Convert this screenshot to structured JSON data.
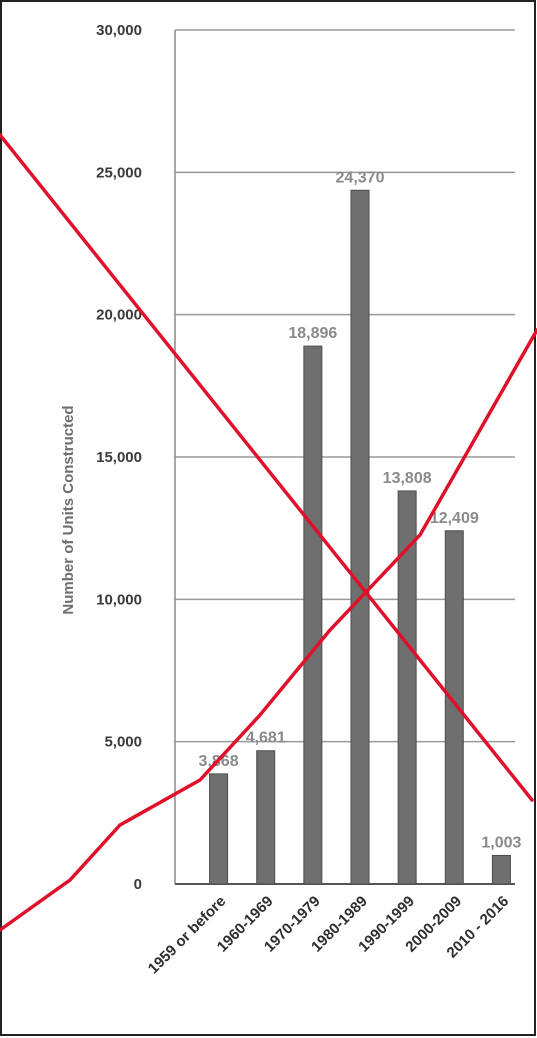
{
  "chart_data": {
    "type": "bar",
    "categories": [
      "1959 or before",
      "1960-1969",
      "1970-1979",
      "1980-1989",
      "1990-1999",
      "2000-2009",
      "2010 - 2016"
    ],
    "values": [
      3868,
      4681,
      18896,
      24370,
      13808,
      12409,
      1003
    ],
    "data_labels": [
      "3,868",
      "4,681",
      "18,896",
      "24,370",
      "13,808",
      "12,409",
      "1,003"
    ],
    "ylabel": "Number of Units Constructed",
    "xlabel": "",
    "title": "",
    "ylim": [
      0,
      30000
    ],
    "yticks": [
      "0",
      "5,000",
      "10,000",
      "15,000",
      "20,000",
      "25,000",
      "30,000"
    ],
    "grid": true,
    "legend": "none",
    "colors": {
      "bar": "#6f6f6f",
      "bar_edge": "#4d4d4d",
      "grid": "#9a9a9a",
      "cross": "#e0102a"
    }
  }
}
